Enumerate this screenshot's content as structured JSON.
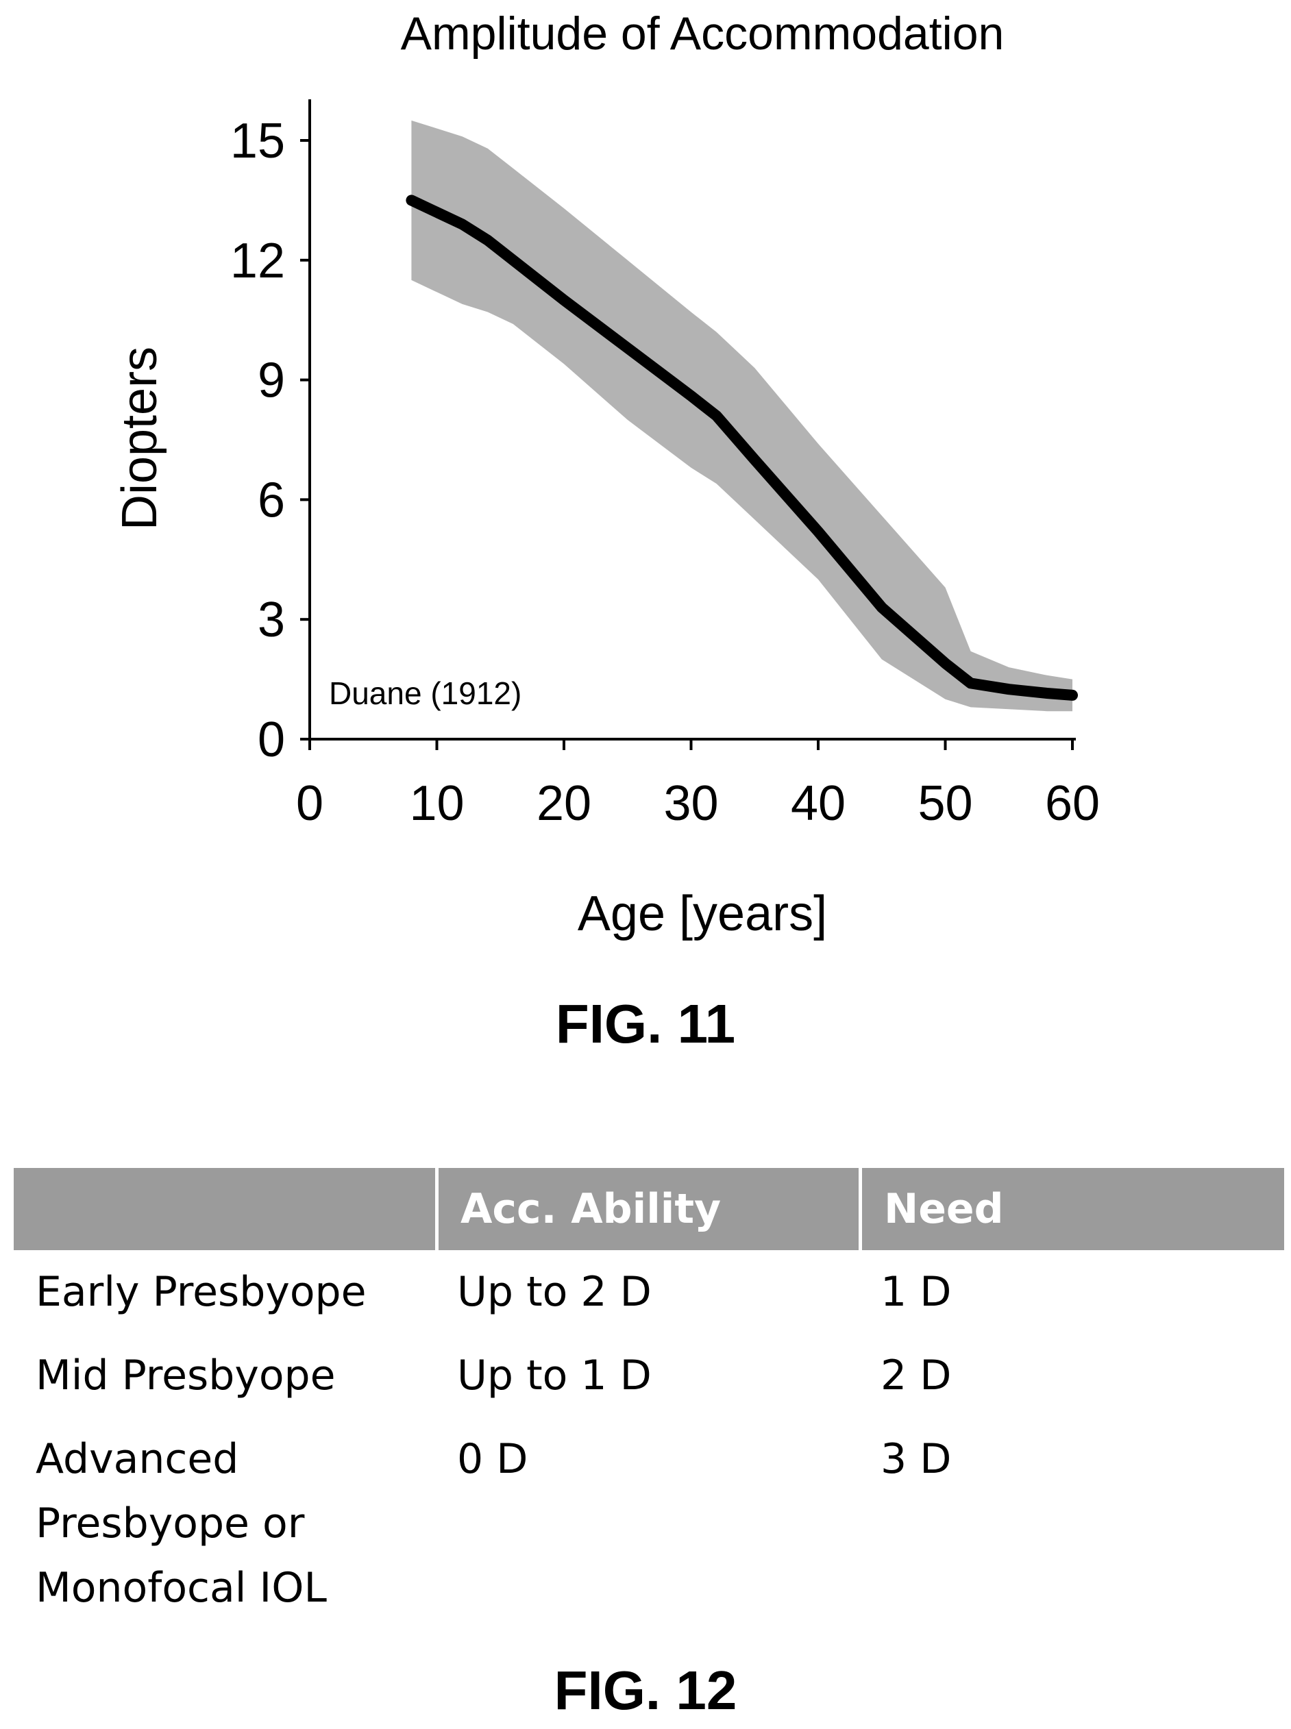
{
  "chart_data": {
    "type": "area",
    "title": "Amplitude of Accommodation",
    "xlabel": "Age [years]",
    "ylabel": "Diopters",
    "xlim": [
      0,
      60
    ],
    "ylim": [
      0,
      15
    ],
    "xticks": [
      "0",
      "10",
      "20",
      "30",
      "40",
      "50",
      "60"
    ],
    "yticks": [
      "0",
      "3",
      "6",
      "9",
      "12",
      "15"
    ],
    "grid": false,
    "annotation": "Duane (1912)",
    "series": [
      {
        "type": "line",
        "x": [
          8,
          10,
          12,
          14,
          16,
          20,
          25,
          30,
          32,
          35,
          40,
          45,
          50,
          52,
          55,
          58,
          60
        ],
        "y": [
          13.5,
          13.2,
          12.9,
          12.5,
          12.0,
          11.0,
          9.8,
          8.6,
          8.1,
          7.0,
          5.2,
          3.3,
          1.9,
          1.4,
          1.25,
          1.15,
          1.1
        ]
      },
      {
        "type": "band",
        "x": [
          8,
          10,
          12,
          14,
          16,
          20,
          25,
          30,
          32,
          35,
          40,
          45,
          50,
          52,
          55,
          58,
          60
        ],
        "upper": [
          15.5,
          15.3,
          15.1,
          14.8,
          14.3,
          13.3,
          12.0,
          10.7,
          10.2,
          9.3,
          7.4,
          5.6,
          3.8,
          2.2,
          1.8,
          1.6,
          1.5
        ],
        "lower": [
          11.5,
          11.2,
          10.9,
          10.7,
          10.4,
          9.4,
          8.0,
          6.8,
          6.4,
          5.5,
          4.0,
          2.0,
          1.0,
          0.8,
          0.75,
          0.7,
          0.7
        ]
      }
    ]
  },
  "figures": {
    "fig11": "FIG. 11",
    "fig12": "FIG. 12"
  },
  "table": {
    "headers": [
      "",
      "Acc. Ability",
      "Need"
    ],
    "rows": [
      [
        "Early Presbyope",
        "Up to 2 D",
        "1 D"
      ],
      [
        "Mid Presbyope",
        "Up to 1 D",
        "2 D"
      ],
      [
        "Advanced\nPresbyope or\nMonofocal IOL",
        "0 D",
        "3 D"
      ]
    ]
  },
  "colors": {
    "band": "#b3b3b3",
    "line": "#000000",
    "header_bg": "#9b9b9b",
    "header_text": "#ffffff"
  }
}
